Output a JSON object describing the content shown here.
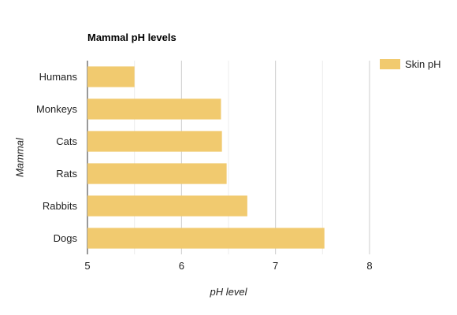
{
  "chart_data": {
    "type": "bar",
    "orientation": "horizontal",
    "title": "Mammal pH levels",
    "xlabel": "pH level",
    "ylabel": "Mammal",
    "categories": [
      "Humans",
      "Monkeys",
      "Cats",
      "Rats",
      "Rabbits",
      "Dogs"
    ],
    "series": [
      {
        "name": "Skin pH",
        "values": [
          5.5,
          6.42,
          6.43,
          6.48,
          6.7,
          7.52
        ],
        "color": "#f1ca6f"
      }
    ],
    "xlim": [
      5,
      8
    ],
    "xticks": [
      "5",
      "6",
      "7",
      "8"
    ],
    "grid": true,
    "legend_position": "top-right"
  }
}
